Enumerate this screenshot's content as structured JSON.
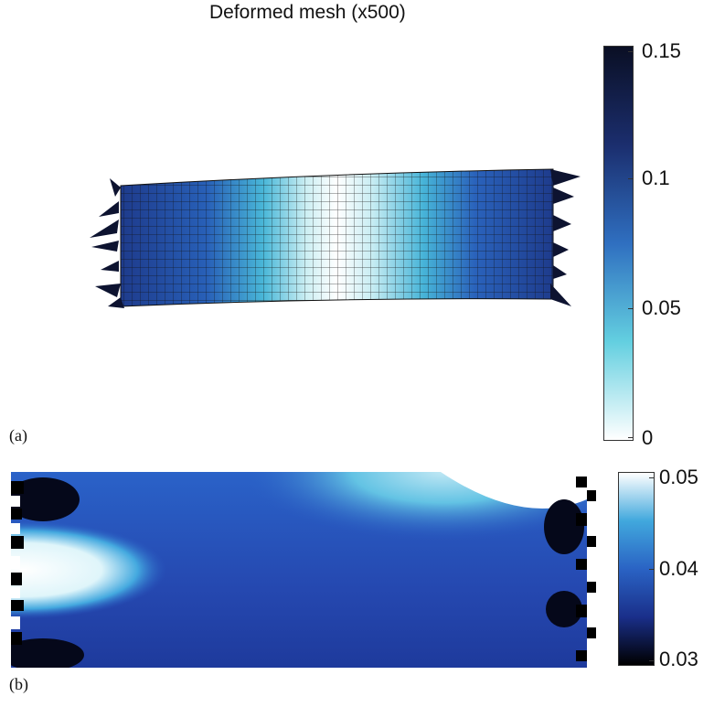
{
  "panel_a": {
    "title": "Deformed mesh (x500)",
    "label": "(a)",
    "colorbar": {
      "ticks": [
        "0.15",
        "0.1",
        "0.05",
        "0"
      ],
      "colors": [
        "#ffffff",
        "#63cfe0",
        "#2f6fc0",
        "#1b2e6e",
        "#0a0f24"
      ]
    }
  },
  "panel_b": {
    "label": "(b)",
    "colorbar": {
      "ticks": [
        "0.05",
        "0.04",
        "0.03"
      ],
      "colors": [
        "#000000",
        "#1a2f8a",
        "#2a63c4",
        "#41a8dd",
        "#ffffff"
      ]
    }
  }
}
